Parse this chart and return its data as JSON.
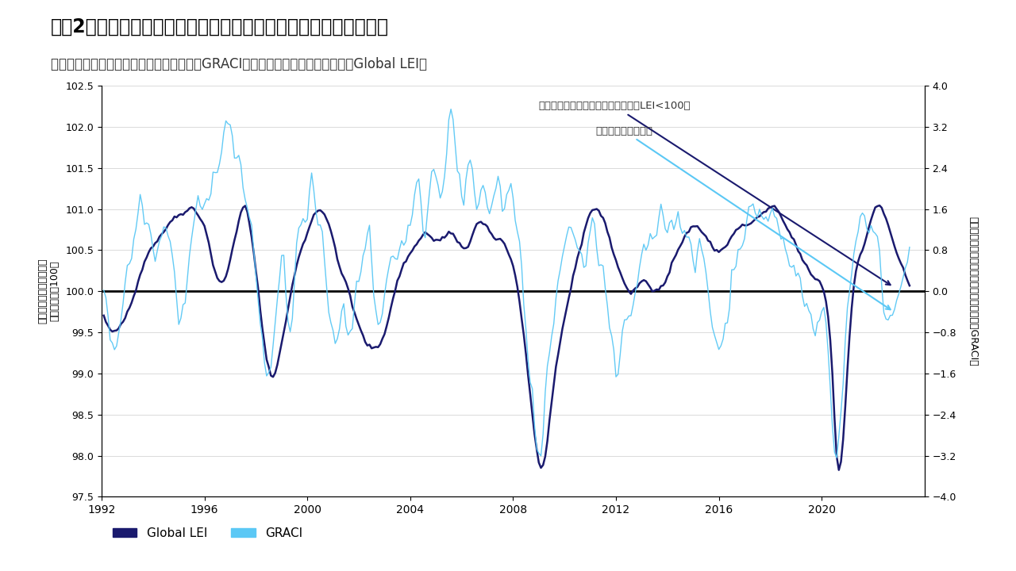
{
  "title": "図表2：市場センチメントの逆転は、低成長・減速する環境を示唆",
  "subtitle": "グローバル・リスク選好度サイクル指数（GRACI）とグローバル景気先行指数（Global LEI）",
  "ylabel_left": "グローバル景気先行指数\n（トレンド＝100）",
  "ylabel_right": "グローバル・リスク選好度サイクル指数（GRACI）",
  "annotation1": "世界の成長率がトレンドを下回る（LEI<100）",
  "annotation2": "リスク選好度は低下",
  "legend_lei": "Global LEI",
  "legend_graci": "GRACI",
  "ylim_left": [
    97.5,
    102.5
  ],
  "ylim_right": [
    -4.0,
    4.0
  ],
  "yticks_left": [
    97.5,
    98.0,
    98.5,
    99.0,
    99.5,
    100.0,
    100.5,
    101.0,
    101.5,
    102.0,
    102.5
  ],
  "yticks_right": [
    -4.0,
    -3.2,
    -2.4,
    -1.6,
    -0.8,
    0.0,
    0.8,
    1.6,
    2.4,
    3.2,
    4.0
  ],
  "lei_color": "#1a1a6e",
  "graci_color": "#5bc8f5",
  "background_color": "#ffffff",
  "hline_color": "#000000",
  "title_fontsize": 17,
  "subtitle_fontsize": 12,
  "axis_fontsize": 10,
  "annotation_arrow_color_lei": "#1a1a6e",
  "annotation_arrow_color_graci": "#5bc8f5"
}
